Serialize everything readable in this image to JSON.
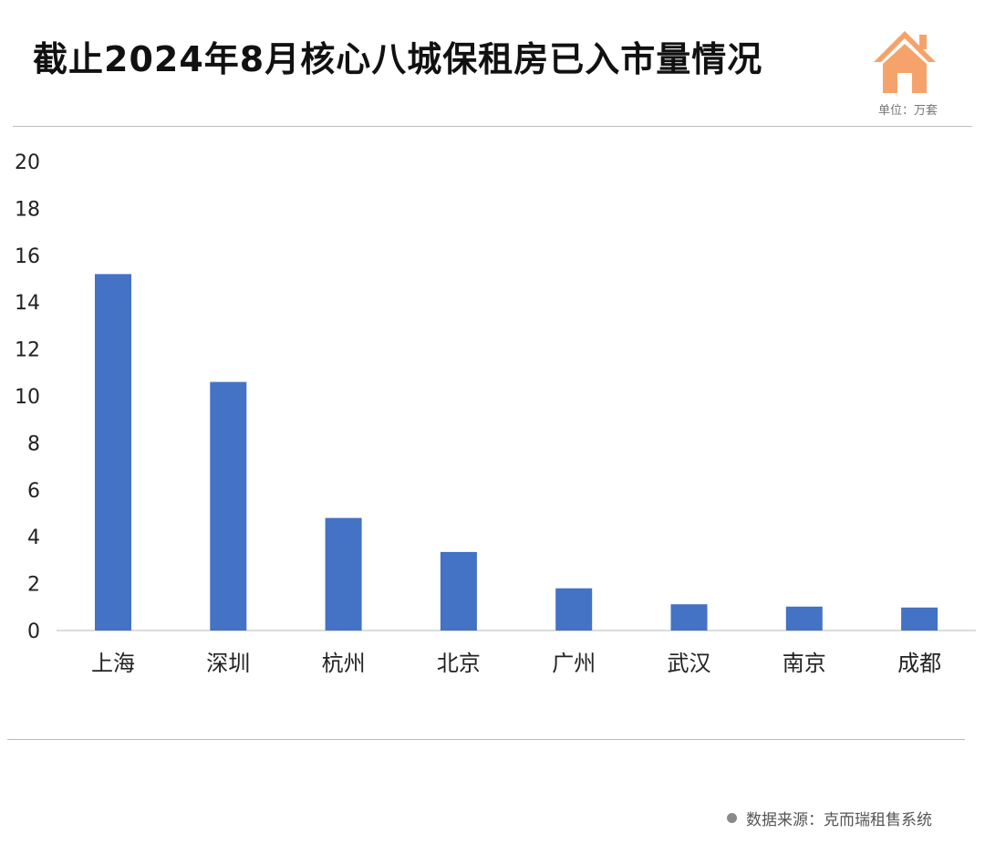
{
  "header": {
    "title": "截止2024年8月核心八城保租房已入市量情况",
    "unit": "单位：万套"
  },
  "footer": {
    "source": "数据来源：克而瑞租售系统"
  },
  "colors": {
    "bar": "#4472c4",
    "logo": "#f5a36b"
  },
  "chart_data": {
    "type": "bar",
    "title": "截止2024年8月核心八城保租房已入市量情况",
    "xlabel": "",
    "ylabel": "单位：万套",
    "categories": [
      "上海",
      "深圳",
      "杭州",
      "北京",
      "广州",
      "武汉",
      "南京",
      "成都"
    ],
    "values": [
      15.2,
      10.6,
      4.8,
      3.35,
      1.8,
      1.12,
      1.02,
      0.98
    ],
    "ylim": [
      0,
      20
    ],
    "yticks": [
      "0",
      "2",
      "4",
      "6",
      "8",
      "10",
      "12",
      "14",
      "16",
      "18",
      "20"
    ],
    "grid": false,
    "legend": "none"
  }
}
